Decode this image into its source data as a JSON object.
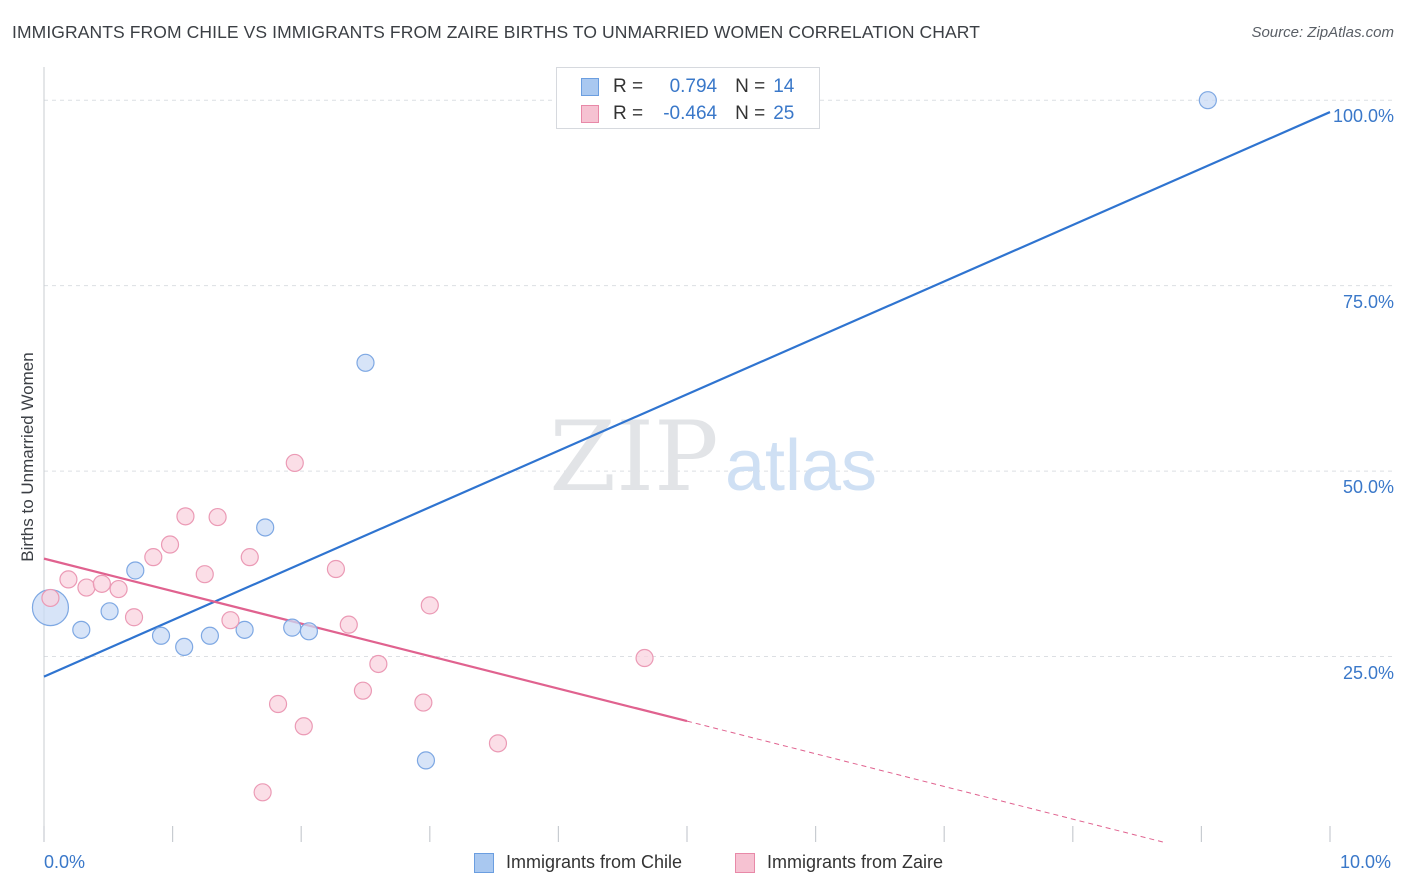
{
  "header": {
    "title": "IMMIGRANTS FROM CHILE VS IMMIGRANTS FROM ZAIRE BIRTHS TO UNMARRIED WOMEN CORRELATION CHART",
    "source": "Source: ZipAtlas.com"
  },
  "watermark": {
    "zip": "ZIP",
    "atlas": "atlas"
  },
  "legend": {
    "r_label": "R =",
    "n_label": "N =",
    "rows": [
      {
        "r": "0.794",
        "n": "14",
        "color": "#a9c8f0",
        "border": "#6b9ee0"
      },
      {
        "r": "-0.464",
        "n": "25",
        "color": "#f6c2d2",
        "border": "#e889a8"
      }
    ]
  },
  "colors": {
    "blue_line": "#2f74d0",
    "pink_line": "#e0628f",
    "blue_fill": "#c9dbf5",
    "blue_stroke": "#7ea8e3",
    "pink_fill": "#f9d3df",
    "pink_stroke": "#eb9ab5",
    "grid": "#dcdfe3",
    "axis_text": "#3a78c9"
  },
  "chart_data": {
    "type": "scatter",
    "title": "IMMIGRANTS FROM CHILE VS IMMIGRANTS FROM ZAIRE BIRTHS TO UNMARRIED WOMEN CORRELATION CHART",
    "xlabel": "",
    "ylabel": "Births to Unmarried Women",
    "xlim": [
      0,
      10
    ],
    "ylim": [
      0,
      103.8
    ],
    "x_tick_labels": [
      "0.0%",
      "10.0%"
    ],
    "y_ticks": [
      25,
      50,
      75,
      100
    ],
    "y_tick_labels": [
      "25.0%",
      "50.0%",
      "75.0%",
      "100.0%"
    ],
    "legend_position": "bottom",
    "series": [
      {
        "name": "Immigrants from Chile",
        "r": 0.794,
        "n": 14,
        "points": [
          {
            "x": 0.05,
            "y": 31.6,
            "big": true
          },
          {
            "x": 0.29,
            "y": 28.6
          },
          {
            "x": 0.51,
            "y": 31.1
          },
          {
            "x": 0.71,
            "y": 36.6
          },
          {
            "x": 0.91,
            "y": 27.8
          },
          {
            "x": 1.09,
            "y": 26.3
          },
          {
            "x": 1.29,
            "y": 27.8
          },
          {
            "x": 1.56,
            "y": 28.6
          },
          {
            "x": 1.72,
            "y": 42.4
          },
          {
            "x": 1.93,
            "y": 28.9
          },
          {
            "x": 2.06,
            "y": 28.4
          },
          {
            "x": 2.5,
            "y": 64.6
          },
          {
            "x": 2.97,
            "y": 11.0
          },
          {
            "x": 9.05,
            "y": 100.0
          }
        ],
        "trend": {
          "x0": 0,
          "y0": 22.3,
          "x1": 10,
          "y1": 98.4
        }
      },
      {
        "name": "Immigrants from Zaire",
        "r": -0.464,
        "n": 25,
        "points": [
          {
            "x": 0.05,
            "y": 32.9
          },
          {
            "x": 0.19,
            "y": 35.4
          },
          {
            "x": 0.33,
            "y": 34.3
          },
          {
            "x": 0.45,
            "y": 34.8
          },
          {
            "x": 0.58,
            "y": 34.1
          },
          {
            "x": 0.7,
            "y": 30.3
          },
          {
            "x": 0.85,
            "y": 38.4
          },
          {
            "x": 0.98,
            "y": 40.1
          },
          {
            "x": 1.1,
            "y": 43.9
          },
          {
            "x": 1.25,
            "y": 36.1
          },
          {
            "x": 1.35,
            "y": 43.8
          },
          {
            "x": 1.45,
            "y": 29.9
          },
          {
            "x": 1.6,
            "y": 38.4
          },
          {
            "x": 1.7,
            "y": 6.7
          },
          {
            "x": 1.82,
            "y": 18.6
          },
          {
            "x": 1.95,
            "y": 51.1
          },
          {
            "x": 2.02,
            "y": 15.6
          },
          {
            "x": 2.27,
            "y": 36.8
          },
          {
            "x": 2.37,
            "y": 29.3
          },
          {
            "x": 2.48,
            "y": 20.4
          },
          {
            "x": 2.6,
            "y": 24.0
          },
          {
            "x": 2.95,
            "y": 18.8
          },
          {
            "x": 3.0,
            "y": 31.9
          },
          {
            "x": 3.53,
            "y": 13.3
          },
          {
            "x": 4.67,
            "y": 24.8
          }
        ],
        "trend": {
          "x0": 0,
          "y0": 38.2,
          "x1": 5.0,
          "y1": 16.3,
          "x_dash_end": 8.7,
          "y_dash_end": 0
        }
      }
    ]
  }
}
